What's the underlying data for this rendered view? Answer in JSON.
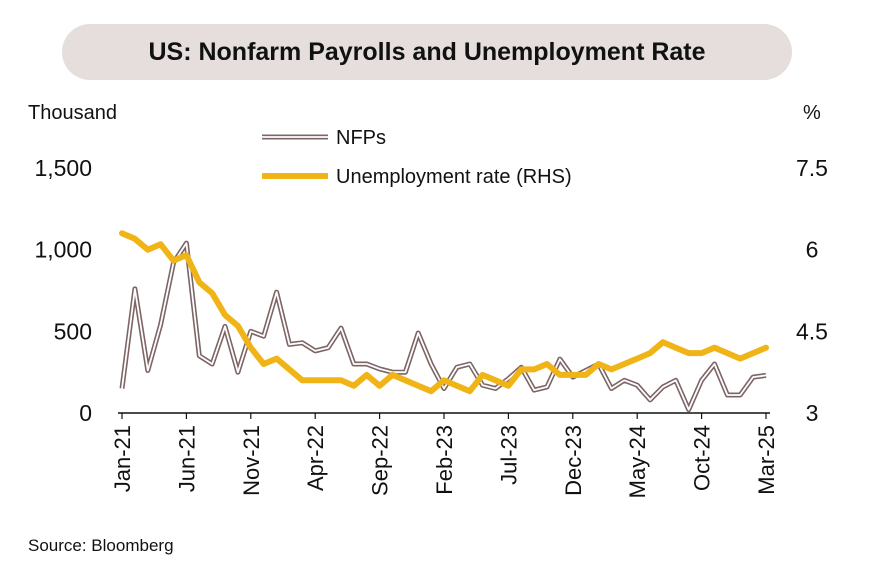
{
  "header": {
    "title": "US: Nonfarm Payrolls and Unemployment Rate"
  },
  "left_unit": "Thousand",
  "right_unit": "%",
  "footer": {
    "source": "Source: Bloomberg"
  },
  "colors": {
    "nfp": "#7d6566",
    "nfp_inner": "#ffffff",
    "unemployment": "#f1b416",
    "title_bg": "#e5dedd"
  },
  "chart_data": {
    "type": "line",
    "title": "US: Nonfarm Payrolls and Unemployment Rate",
    "ylabel_left": "Thousand",
    "ylabel_right": "%",
    "ylim_left": [
      0,
      1500
    ],
    "ylim_right": [
      3,
      7.5
    ],
    "yticks_left": [
      "0",
      "500",
      "1,000",
      "1,500"
    ],
    "yticks_right": [
      "3",
      "4.5",
      "6",
      "7.5"
    ],
    "xtick_labels": [
      "Jan-21",
      "Jun-21",
      "Nov-21",
      "Apr-22",
      "Sep-22",
      "Feb-23",
      "Jul-23",
      "Dec-23",
      "May-24",
      "Oct-24",
      "Mar-25"
    ],
    "legend_position": "top-center",
    "grid": false,
    "x": [
      "Jan-21",
      "Feb-21",
      "Mar-21",
      "Apr-21",
      "May-21",
      "Jun-21",
      "Jul-21",
      "Aug-21",
      "Sep-21",
      "Oct-21",
      "Nov-21",
      "Dec-21",
      "Jan-22",
      "Feb-22",
      "Mar-22",
      "Apr-22",
      "May-22",
      "Jun-22",
      "Jul-22",
      "Aug-22",
      "Sep-22",
      "Oct-22",
      "Nov-22",
      "Dec-22",
      "Jan-23",
      "Feb-23",
      "Mar-23",
      "Apr-23",
      "May-23",
      "Jun-23",
      "Jul-23",
      "Aug-23",
      "Sep-23",
      "Oct-23",
      "Nov-23",
      "Dec-23",
      "Jan-24",
      "Feb-24",
      "Mar-24",
      "Apr-24",
      "May-24",
      "Jun-24",
      "Jul-24",
      "Aug-24",
      "Sep-24",
      "Oct-24",
      "Nov-24",
      "Dec-24",
      "Jan-25",
      "Feb-25",
      "Mar-25"
    ],
    "series": [
      {
        "name": "NFPs",
        "axis": "left",
        "style": "double-line",
        "values": [
          150,
          760,
          260,
          540,
          920,
          1040,
          350,
          300,
          530,
          250,
          500,
          470,
          740,
          420,
          430,
          380,
          400,
          520,
          300,
          300,
          270,
          250,
          250,
          490,
          300,
          150,
          280,
          300,
          170,
          150,
          210,
          280,
          140,
          160,
          330,
          220,
          260,
          300,
          150,
          200,
          170,
          80,
          160,
          200,
          20,
          200,
          300,
          110,
          110,
          220,
          230
        ]
      },
      {
        "name": "Unemployment rate (RHS)",
        "axis": "right",
        "style": "line",
        "values": [
          6.3,
          6.2,
          6.0,
          6.1,
          5.8,
          5.9,
          5.4,
          5.2,
          4.8,
          4.6,
          4.2,
          3.9,
          4.0,
          3.8,
          3.6,
          3.6,
          3.6,
          3.6,
          3.5,
          3.7,
          3.5,
          3.7,
          3.6,
          3.5,
          3.4,
          3.6,
          3.5,
          3.4,
          3.7,
          3.6,
          3.5,
          3.8,
          3.8,
          3.9,
          3.7,
          3.7,
          3.7,
          3.9,
          3.8,
          3.9,
          4.0,
          4.1,
          4.3,
          4.2,
          4.1,
          4.1,
          4.2,
          4.1,
          4.0,
          4.1,
          4.2
        ]
      }
    ]
  }
}
